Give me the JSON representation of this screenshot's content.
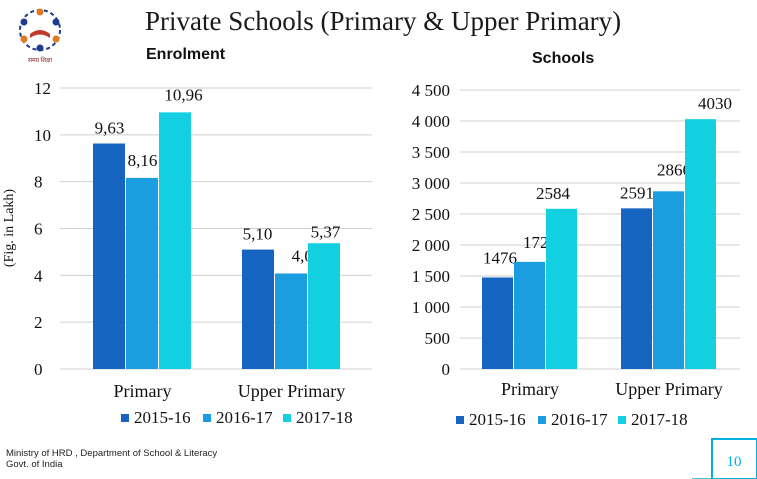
{
  "page": {
    "title": "Private Schools (Primary & Upper Primary)",
    "footer_line1": "Ministry of HRD , Department of School & Literacy",
    "footer_line2": "Govt. of India",
    "page_number": "10",
    "logo_text": "समग्र शिक्षा"
  },
  "colors": {
    "series": [
      "#1565c0",
      "#1a9ee0",
      "#12d0e0"
    ],
    "grid": "#cfcfcf",
    "accent": "#00b0e0"
  },
  "chart_data": [
    {
      "type": "bar",
      "title": "Enrolment",
      "ylabel": "(Fig. in Lakh)",
      "categories": [
        "Primary",
        "Upper Primary"
      ],
      "ylim": [
        0,
        12
      ],
      "yticks": [
        0,
        2,
        4,
        6,
        8,
        10,
        12
      ],
      "ytick_labels": [
        "0",
        "2",
        "4",
        "6",
        "8",
        "10",
        "12"
      ],
      "legend_position": "bottom",
      "grid": true,
      "series": [
        {
          "name": "2015-16",
          "values": [
            9.63,
            5.1
          ],
          "labels": [
            "9,63",
            "5,10"
          ]
        },
        {
          "name": "2016-17",
          "values": [
            8.16,
            4.08
          ],
          "labels": [
            "8,16",
            "4,08"
          ]
        },
        {
          "name": "2017-18",
          "values": [
            10.96,
            5.37
          ],
          "labels": [
            "10,96",
            "5,37"
          ]
        }
      ]
    },
    {
      "type": "bar",
      "title": "Schools",
      "ylabel": "",
      "categories": [
        "Primary",
        "Upper Primary"
      ],
      "ylim": [
        0,
        4500
      ],
      "yticks": [
        0,
        500,
        1000,
        1500,
        2000,
        2500,
        3000,
        3500,
        4000,
        4500
      ],
      "ytick_labels": [
        "0",
        "500",
        "1 000",
        "1 500",
        "2 000",
        "2 500",
        "3 000",
        "3 500",
        "4 000",
        "4 500"
      ],
      "legend_position": "bottom",
      "grid": true,
      "series": [
        {
          "name": "2015-16",
          "values": [
            1476,
            2591
          ],
          "labels": [
            "1476",
            "2591"
          ]
        },
        {
          "name": "2016-17",
          "values": [
            1728,
            2866
          ],
          "labels": [
            "1728",
            "2866"
          ]
        },
        {
          "name": "2017-18",
          "values": [
            2584,
            4030
          ],
          "labels": [
            "2584",
            "4030"
          ]
        }
      ]
    }
  ]
}
